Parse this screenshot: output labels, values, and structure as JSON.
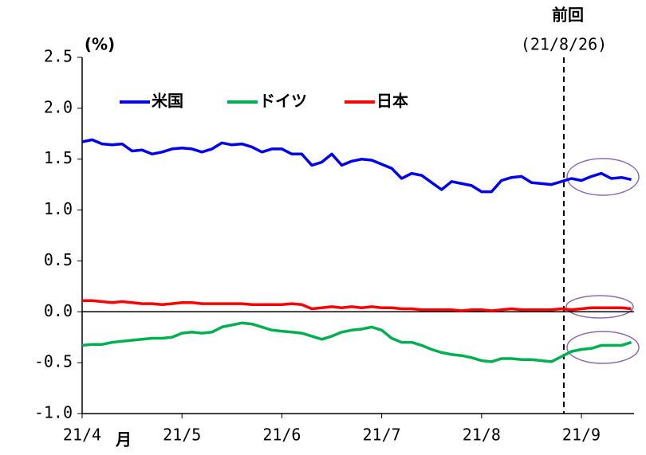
{
  "chart_data": {
    "type": "line",
    "ylabel": "(%)",
    "xlabel": "月",
    "annotations": [
      "前回",
      "(21/8/26)"
    ],
    "categories": [
      "21/4",
      null,
      null,
      null,
      null,
      null,
      null,
      null,
      null,
      null,
      "21/5",
      null,
      null,
      null,
      null,
      null,
      null,
      null,
      null,
      null,
      "21/6",
      null,
      null,
      null,
      null,
      null,
      null,
      null,
      null,
      null,
      "21/7",
      null,
      null,
      null,
      null,
      null,
      null,
      null,
      null,
      null,
      "21/8",
      null,
      null,
      null,
      null,
      null,
      null,
      null,
      null,
      null,
      "21/9",
      null,
      null,
      null,
      null,
      null
    ],
    "series": [
      {
        "name": "米国",
        "color": "#0000ee",
        "values": [
          1.67,
          1.69,
          1.65,
          1.64,
          1.65,
          1.58,
          1.59,
          1.55,
          1.57,
          1.6,
          1.61,
          1.6,
          1.57,
          1.6,
          1.66,
          1.64,
          1.65,
          1.62,
          1.57,
          1.6,
          1.6,
          1.55,
          1.55,
          1.44,
          1.47,
          1.55,
          1.44,
          1.48,
          1.5,
          1.49,
          1.45,
          1.41,
          1.31,
          1.36,
          1.34,
          1.27,
          1.2,
          1.28,
          1.26,
          1.24,
          1.18,
          1.18,
          1.29,
          1.32,
          1.33,
          1.27,
          1.26,
          1.25,
          1.28,
          1.31,
          1.29,
          1.33,
          1.36,
          1.31,
          1.32,
          1.3
        ]
      },
      {
        "name": "ドイツ",
        "color": "#00b050",
        "values": [
          -0.33,
          -0.32,
          -0.32,
          -0.3,
          -0.29,
          -0.28,
          -0.27,
          -0.26,
          -0.26,
          -0.25,
          -0.21,
          -0.2,
          -0.21,
          -0.2,
          -0.15,
          -0.13,
          -0.11,
          -0.12,
          -0.15,
          -0.18,
          -0.19,
          -0.2,
          -0.21,
          -0.24,
          -0.27,
          -0.24,
          -0.2,
          -0.18,
          -0.17,
          -0.15,
          -0.18,
          -0.26,
          -0.3,
          -0.3,
          -0.33,
          -0.37,
          -0.4,
          -0.42,
          -0.43,
          -0.45,
          -0.48,
          -0.49,
          -0.46,
          -0.46,
          -0.47,
          -0.47,
          -0.48,
          -0.49,
          -0.44,
          -0.39,
          -0.37,
          -0.36,
          -0.33,
          -0.33,
          -0.33,
          -0.3
        ]
      },
      {
        "name": "日本",
        "color": "#ff0000",
        "values": [
          0.11,
          0.11,
          0.1,
          0.09,
          0.1,
          0.09,
          0.08,
          0.08,
          0.07,
          0.08,
          0.09,
          0.09,
          0.08,
          0.08,
          0.08,
          0.08,
          0.08,
          0.07,
          0.07,
          0.07,
          0.07,
          0.08,
          0.07,
          0.03,
          0.04,
          0.05,
          0.04,
          0.05,
          0.04,
          0.05,
          0.04,
          0.04,
          0.03,
          0.03,
          0.02,
          0.02,
          0.02,
          0.02,
          0.01,
          0.02,
          0.02,
          0.01,
          0.02,
          0.03,
          0.02,
          0.02,
          0.02,
          0.02,
          0.03,
          0.02,
          0.03,
          0.04,
          0.04,
          0.04,
          0.04,
          0.03
        ]
      }
    ],
    "ylim": [
      -1.0,
      2.5
    ],
    "yticks": [
      2.5,
      {
        "value": 2.0,
        "label": "2.0"
      },
      1.5,
      {
        "value": 1.0,
        "label": "1.0"
      },
      0.5,
      {
        "value": 0.0,
        "label": "0.0"
      },
      -0.5,
      {
        "value": -1.0,
        "label": "-1.0"
      }
    ],
    "grid": false
  }
}
